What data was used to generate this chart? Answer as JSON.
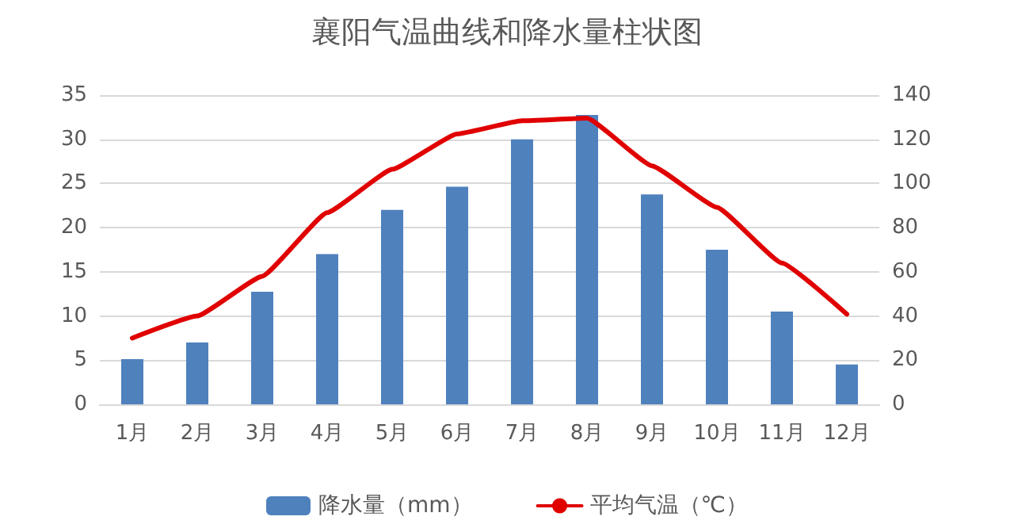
{
  "chart_data": {
    "type": "bar",
    "title": "襄阳气温曲线和降水量柱状图",
    "categories": [
      "1月",
      "2月",
      "3月",
      "4月",
      "5月",
      "6月",
      "7月",
      "8月",
      "9月",
      "10月",
      "11月",
      "12月"
    ],
    "series": [
      {
        "name": "降水量（mm）",
        "axis": "y2",
        "color": "#4f81bd",
        "values": [
          20.5,
          28,
          51,
          68,
          88,
          98.5,
          120,
          131,
          95,
          70,
          42,
          18
        ]
      },
      {
        "name": "平均气温（℃）",
        "type": "line",
        "color": "#e00000",
        "marker": "none",
        "values": [
          7.5,
          10,
          14.5,
          21.7,
          26.6,
          30.6,
          32.1,
          32.4,
          27,
          22.3,
          16,
          10.2
        ]
      }
    ],
    "ylim": [
      0,
      35
    ],
    "yticks": [
      0,
      5,
      10,
      15,
      20,
      25,
      30,
      35
    ],
    "y2lim": [
      0,
      140
    ],
    "y2ticks": [
      0,
      20,
      40,
      60,
      80,
      100,
      120,
      140
    ],
    "grid": "y",
    "legend": "bottom"
  }
}
